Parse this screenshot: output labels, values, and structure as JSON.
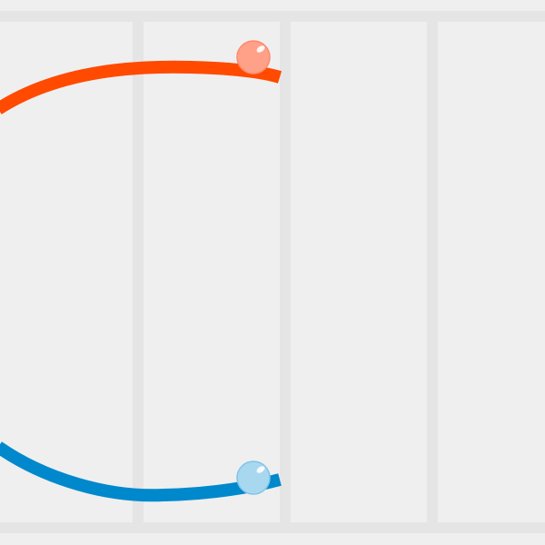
{
  "game": {
    "background_color": "#efefef",
    "lane_divider_color": "#e5e5e5",
    "lane_count": 4
  },
  "tracks": [
    {
      "name": "orange-track",
      "color": "#ff4a00"
    },
    {
      "name": "blue-track",
      "color": "#0088cc"
    }
  ],
  "balls": [
    {
      "name": "orange-ball",
      "fill": "#ffa088",
      "stroke": "#ff8a6a"
    },
    {
      "name": "blue-ball",
      "fill": "#a8d8f0",
      "stroke": "#82c4e6"
    }
  ],
  "icons": {
    "ball_highlight": "circle-highlight"
  }
}
